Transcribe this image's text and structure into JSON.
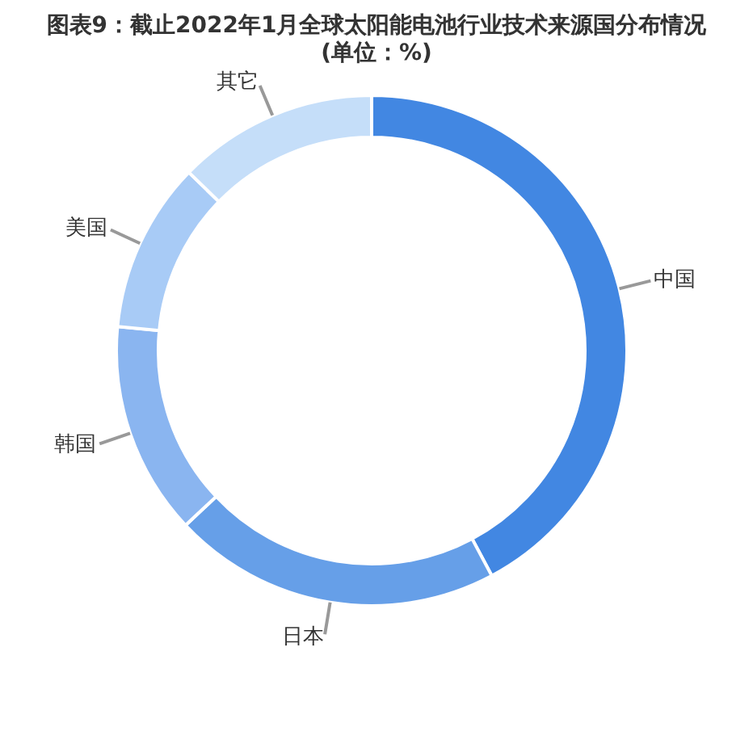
{
  "chart_data": {
    "type": "donut",
    "title": "图表9：截止2022年1月全球太阳能电池行业技术来源国分布情况(单位：%)",
    "categories": [
      "中国",
      "日本",
      "韩国",
      "美国",
      "其它"
    ],
    "values": [
      42.2,
      20.8,
      13.5,
      10.8,
      12.7
    ],
    "colors": [
      "#4287e2",
      "#669fe8",
      "#8ab5f0",
      "#a8cbf6",
      "#c5def9"
    ]
  }
}
